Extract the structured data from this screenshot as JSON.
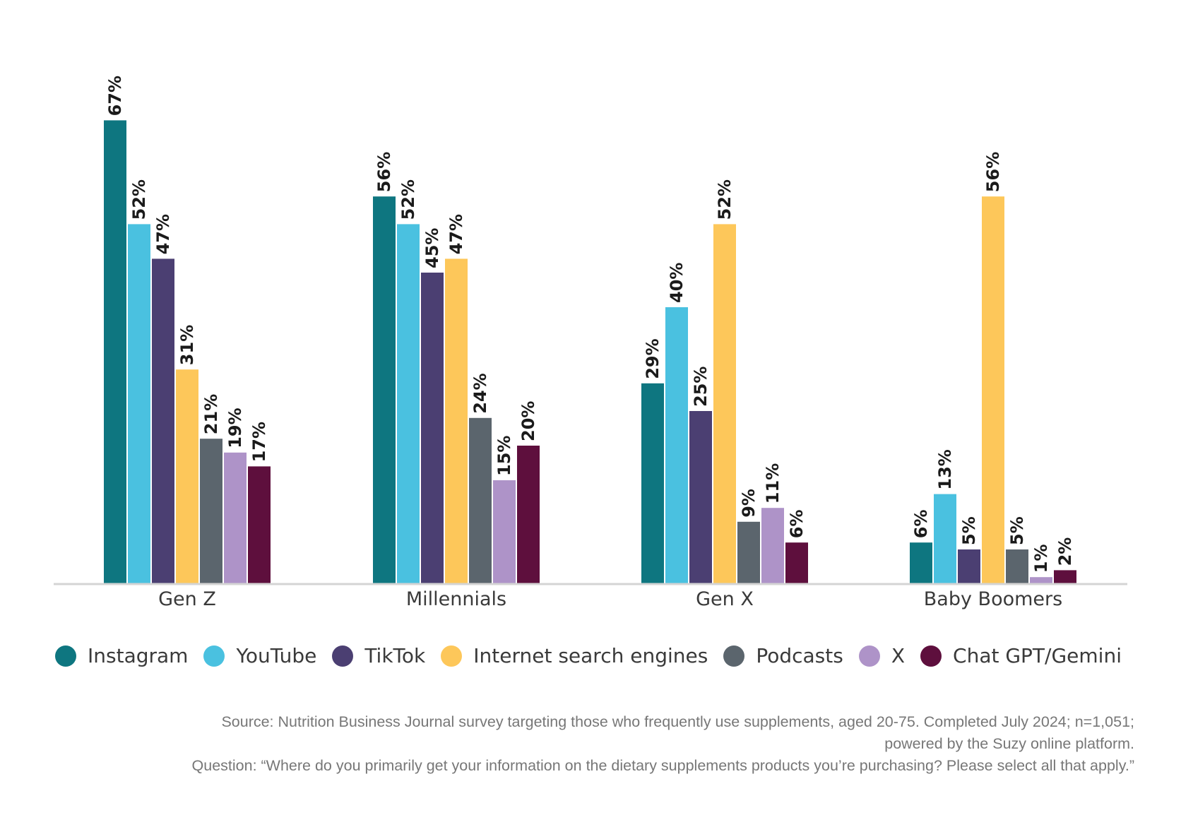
{
  "chart_data": {
    "type": "bar",
    "categories": [
      "Gen Z",
      "Millennials",
      "Gen X",
      "Baby Boomers"
    ],
    "series": [
      {
        "name": "Instagram",
        "color": "#0e7680",
        "values": [
          67,
          56,
          29,
          6
        ],
        "labels": [
          "67%",
          "56%",
          "29%",
          "6%"
        ]
      },
      {
        "name": "YouTube",
        "color": "#4ac1e0",
        "values": [
          52,
          52,
          40,
          13
        ],
        "labels": [
          "52%",
          "52%",
          "40%",
          "13%"
        ]
      },
      {
        "name": "TikTok",
        "color": "#4b3f72",
        "values": [
          47,
          45,
          25,
          5
        ],
        "labels": [
          "47%",
          "45%",
          "25%",
          "5%"
        ]
      },
      {
        "name": "Internet search engines",
        "color": "#fdc75a",
        "values": [
          31,
          47,
          52,
          56
        ],
        "labels": [
          "31%",
          "47%",
          "52%",
          "56%"
        ]
      },
      {
        "name": "Podcasts",
        "color": "#5b656d",
        "values": [
          21,
          24,
          9,
          5
        ],
        "labels": [
          "21%",
          "24%",
          "9%",
          "5%"
        ]
      },
      {
        "name": "X",
        "color": "#ae93c8",
        "values": [
          19,
          15,
          11,
          1
        ],
        "labels": [
          "19%",
          "15%",
          "11%",
          "1%"
        ]
      },
      {
        "name": "Chat GPT/Gemini",
        "color": "#5e0f3d",
        "values": [
          17,
          20,
          6,
          2
        ],
        "labels": [
          "17%",
          "20%",
          "6%",
          "2%"
        ]
      }
    ],
    "ylim": [
      0,
      70
    ],
    "grid": false,
    "legend_position": "bottom",
    "data_labels": "rotated, above bars"
  },
  "footnote": {
    "source_line1": "Source: Nutrition Business Journal survey targeting those who frequently use supplements, aged 20-75. Completed July 2024; n=1,051;",
    "source_line2": "powered by the Suzy online platform.",
    "question": "Question: “Where do you primarily get your information on the dietary supplements products you’re purchasing? Please select all that apply.”"
  }
}
